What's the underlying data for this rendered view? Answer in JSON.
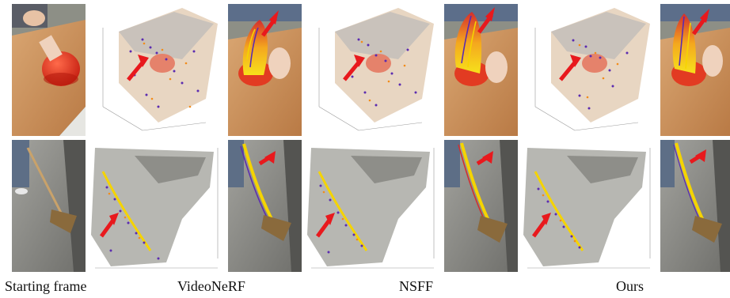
{
  "captions": {
    "starting_frame": "Starting frame",
    "videonerf": "VideoNeRF",
    "nsff": "NSFF",
    "ours": "Ours"
  },
  "colors": {
    "arrow": "#e8191d",
    "track_yellow": "#f5d400",
    "track_purple": "#5b2bb0",
    "track_orange": "#f28c1a",
    "wood": "#c88a55",
    "pepper": "#e23b22",
    "pavement": "#8a8a86"
  },
  "rows": [
    {
      "scene": "pepper-on-cutting-board"
    },
    {
      "scene": "broom-sweeping-pavement"
    }
  ]
}
